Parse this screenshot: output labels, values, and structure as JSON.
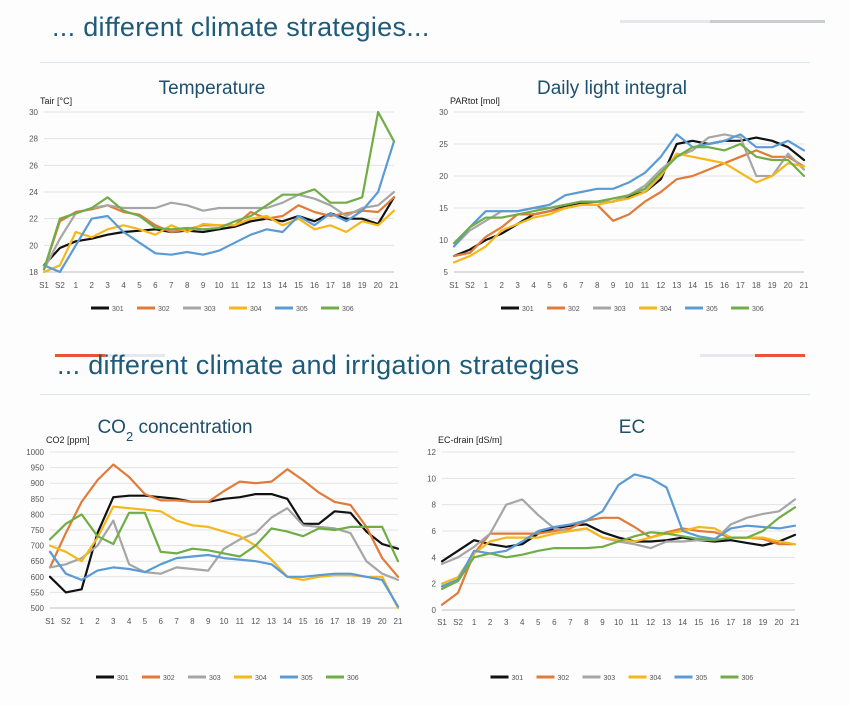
{
  "section1_heading": "... different climate strategies...",
  "section2_heading": "... different climate and irrigation strategies",
  "colors": {
    "301": "#111111",
    "302": "#e07b39",
    "303": "#a6a6a6",
    "304": "#f5b81c",
    "305": "#5b9bd5",
    "306": "#70ad47"
  },
  "chart_data": [
    {
      "type": "line",
      "title": "Temperature",
      "ylabel": "Tair [°C]",
      "categories": [
        "S1",
        "S2",
        "1",
        "2",
        "3",
        "4",
        "5",
        "6",
        "7",
        "8",
        "9",
        "10",
        "11",
        "12",
        "13",
        "14",
        "15",
        "16",
        "17",
        "18",
        "19",
        "20",
        "21"
      ],
      "ylim": [
        18,
        30
      ],
      "yticks": [
        18,
        20,
        22,
        24,
        26,
        28,
        30
      ],
      "grid": true,
      "legend": "bottom",
      "series": [
        {
          "name": "301",
          "values": [
            18.5,
            19.8,
            20.3,
            20.5,
            20.8,
            21.0,
            21.1,
            21.2,
            21.0,
            21.1,
            21.0,
            21.2,
            21.4,
            21.8,
            22.0,
            21.8,
            22.2,
            21.8,
            22.4,
            22.0,
            22.0,
            21.6,
            23.6
          ]
        },
        {
          "name": "302",
          "values": [
            18.2,
            21.8,
            22.5,
            22.7,
            23.0,
            22.5,
            22.3,
            21.5,
            21.0,
            21.2,
            21.5,
            21.5,
            21.5,
            22.5,
            22.0,
            22.2,
            23.0,
            22.5,
            22.2,
            22.4,
            22.6,
            22.5,
            23.6
          ]
        },
        {
          "name": "303",
          "values": [
            18.2,
            20.5,
            22.4,
            22.8,
            23.0,
            22.8,
            22.8,
            22.8,
            23.2,
            23.0,
            22.6,
            22.8,
            22.8,
            22.8,
            22.8,
            23.2,
            23.8,
            23.5,
            23.0,
            22.2,
            22.8,
            23.0,
            24.0
          ]
        },
        {
          "name": "304",
          "values": [
            18.0,
            18.5,
            21.0,
            20.6,
            21.2,
            21.5,
            21.2,
            20.8,
            21.5,
            21.0,
            21.6,
            21.5,
            21.5,
            22.0,
            22.2,
            21.5,
            22.0,
            21.2,
            21.5,
            21.0,
            21.8,
            21.5,
            22.6
          ]
        },
        {
          "name": "305",
          "values": [
            18.5,
            18.0,
            20.0,
            22.0,
            22.2,
            21.0,
            20.2,
            19.4,
            19.3,
            19.5,
            19.3,
            19.6,
            20.2,
            20.8,
            21.2,
            21.0,
            22.2,
            21.5,
            22.4,
            21.8,
            22.6,
            24.0,
            27.8
          ]
        },
        {
          "name": "306",
          "values": [
            18.2,
            22.0,
            22.4,
            22.8,
            23.6,
            22.6,
            22.2,
            21.3,
            21.2,
            21.3,
            21.2,
            21.3,
            21.8,
            22.2,
            23.0,
            23.8,
            23.8,
            24.2,
            23.2,
            23.2,
            23.6,
            30.0,
            27.8
          ]
        }
      ]
    },
    {
      "type": "line",
      "title": "Daily light integral",
      "ylabel": "PARtot [mol]",
      "categories": [
        "S1",
        "S2",
        "1",
        "2",
        "3",
        "4",
        "5",
        "6",
        "7",
        "8",
        "9",
        "10",
        "11",
        "12",
        "13",
        "14",
        "15",
        "16",
        "17",
        "18",
        "19",
        "20",
        "21"
      ],
      "ylim": [
        5,
        30
      ],
      "yticks": [
        5,
        10,
        15,
        20,
        25,
        30
      ],
      "grid": true,
      "legend": "bottom",
      "series": [
        {
          "name": "301",
          "values": [
            7.5,
            8.5,
            10.0,
            11.0,
            12.5,
            14.0,
            14.5,
            15.2,
            15.8,
            16.0,
            16.0,
            16.8,
            17.5,
            19.5,
            25.0,
            25.5,
            25.0,
            25.5,
            25.5,
            26.0,
            25.5,
            24.5,
            22.5
          ]
        },
        {
          "name": "302",
          "values": [
            7.5,
            8.0,
            10.5,
            12.0,
            14.0,
            14.0,
            14.5,
            15.0,
            15.5,
            15.5,
            13.0,
            14.0,
            16.0,
            17.5,
            19.5,
            20.0,
            21.0,
            22.0,
            23.0,
            24.0,
            23.0,
            23.0,
            21.5
          ]
        },
        {
          "name": "303",
          "values": [
            9.0,
            11.5,
            13.0,
            14.5,
            14.5,
            15.0,
            15.0,
            15.5,
            16.0,
            16.0,
            16.0,
            17.0,
            18.5,
            21.0,
            23.0,
            24.0,
            26.0,
            26.5,
            26.0,
            20.0,
            20.0,
            23.5,
            21.0
          ]
        },
        {
          "name": "304",
          "values": [
            6.5,
            7.5,
            9.0,
            11.5,
            12.5,
            13.5,
            14.0,
            15.0,
            15.5,
            15.5,
            16.0,
            16.5,
            17.5,
            20.0,
            23.5,
            23.0,
            22.5,
            22.0,
            20.5,
            19.0,
            20.0,
            22.0,
            21.5
          ]
        },
        {
          "name": "305",
          "values": [
            9.0,
            12.0,
            14.5,
            14.5,
            14.5,
            15.0,
            15.5,
            17.0,
            17.5,
            18.0,
            18.0,
            19.0,
            20.5,
            23.0,
            26.5,
            24.5,
            25.0,
            25.5,
            26.5,
            24.5,
            24.5,
            25.5,
            24.0
          ]
        },
        {
          "name": "306",
          "values": [
            9.5,
            12.0,
            13.5,
            13.5,
            14.0,
            14.5,
            15.0,
            15.5,
            16.0,
            16.0,
            16.5,
            17.0,
            18.0,
            20.5,
            23.0,
            24.5,
            24.5,
            24.0,
            25.0,
            23.0,
            22.5,
            22.5,
            20.0
          ]
        }
      ]
    },
    {
      "type": "line",
      "title": "CO2 concentration",
      "ylabel": "CO2 [ppm]",
      "categories": [
        "S1",
        "S2",
        "1",
        "2",
        "3",
        "4",
        "5",
        "6",
        "7",
        "8",
        "9",
        "10",
        "11",
        "12",
        "13",
        "14",
        "15",
        "16",
        "17",
        "18",
        "19",
        "20",
        "21"
      ],
      "ylim": [
        500,
        1000
      ],
      "yticks": [
        500,
        550,
        600,
        650,
        700,
        750,
        800,
        850,
        900,
        950,
        1000
      ],
      "grid": true,
      "legend": "bottom",
      "series": [
        {
          "name": "301",
          "values": [
            600,
            550,
            560,
            740,
            855,
            860,
            860,
            855,
            850,
            840,
            840,
            850,
            855,
            865,
            865,
            850,
            770,
            770,
            810,
            805,
            745,
            705,
            690
          ]
        },
        {
          "name": "302",
          "values": [
            630,
            740,
            840,
            910,
            960,
            920,
            865,
            845,
            845,
            840,
            840,
            875,
            905,
            900,
            905,
            945,
            910,
            870,
            840,
            830,
            760,
            660,
            600
          ]
        },
        {
          "name": "303",
          "values": [
            630,
            640,
            660,
            700,
            780,
            640,
            615,
            610,
            630,
            625,
            620,
            690,
            720,
            740,
            790,
            820,
            765,
            760,
            755,
            740,
            650,
            610,
            590
          ]
        },
        {
          "name": "304",
          "values": [
            700,
            680,
            650,
            725,
            825,
            820,
            815,
            810,
            780,
            765,
            760,
            745,
            730,
            700,
            655,
            600,
            590,
            600,
            605,
            605,
            600,
            600,
            500
          ]
        },
        {
          "name": "305",
          "values": [
            680,
            610,
            590,
            620,
            630,
            625,
            615,
            640,
            660,
            665,
            670,
            660,
            655,
            650,
            640,
            600,
            600,
            605,
            610,
            610,
            600,
            590,
            505
          ]
        },
        {
          "name": "306",
          "values": [
            720,
            770,
            800,
            730,
            705,
            805,
            805,
            680,
            675,
            690,
            685,
            675,
            665,
            700,
            755,
            745,
            730,
            755,
            750,
            760,
            760,
            760,
            650
          ]
        }
      ]
    },
    {
      "type": "line",
      "title": "EC",
      "ylabel": "EC-drain [dS/m]",
      "categories": [
        "S1",
        "S2",
        "1",
        "2",
        "3",
        "4",
        "5",
        "6",
        "7",
        "8",
        "9",
        "10",
        "11",
        "12",
        "13",
        "14",
        "15",
        "16",
        "17",
        "18",
        "19",
        "20",
        "21"
      ],
      "ylim": [
        0,
        12
      ],
      "yticks": [
        0,
        2,
        4,
        6,
        8,
        10,
        12
      ],
      "grid": true,
      "legend": "bottom",
      "series": [
        {
          "name": "301",
          "values": [
            3.7,
            4.5,
            5.3,
            5.0,
            4.8,
            5.0,
            5.8,
            6.2,
            6.4,
            6.5,
            5.9,
            5.5,
            5.2,
            5.2,
            5.3,
            5.5,
            5.3,
            5.2,
            5.3,
            5.1,
            4.9,
            5.2,
            5.7
          ]
        },
        {
          "name": "302",
          "values": [
            0.4,
            1.3,
            4.3,
            5.8,
            5.8,
            5.8,
            5.8,
            6.0,
            6.2,
            6.8,
            7.0,
            7.0,
            6.3,
            5.5,
            5.9,
            6.2,
            6.0,
            5.9,
            5.5,
            5.5,
            5.4,
            5.0,
            5.0
          ]
        },
        {
          "name": "303",
          "values": [
            3.5,
            4.0,
            4.8,
            5.8,
            8.0,
            8.4,
            7.2,
            6.2,
            6.0,
            6.2,
            5.5,
            5.2,
            5.0,
            4.7,
            5.2,
            5.2,
            5.3,
            5.3,
            6.5,
            7.0,
            7.3,
            7.5,
            8.4
          ]
        },
        {
          "name": "304",
          "values": [
            2.0,
            2.5,
            4.3,
            5.2,
            5.5,
            5.5,
            5.5,
            5.8,
            6.0,
            6.2,
            5.5,
            5.3,
            5.2,
            5.5,
            5.8,
            6.0,
            6.3,
            6.2,
            5.5,
            5.5,
            5.5,
            5.2,
            5.0
          ]
        },
        {
          "name": "305",
          "values": [
            1.8,
            2.3,
            4.5,
            4.3,
            4.5,
            5.2,
            6.0,
            6.3,
            6.5,
            6.8,
            7.5,
            9.5,
            10.3,
            10.0,
            9.3,
            6.0,
            5.6,
            5.4,
            6.2,
            6.4,
            6.3,
            6.2,
            6.4
          ]
        },
        {
          "name": "306",
          "values": [
            1.6,
            2.2,
            4.0,
            4.3,
            4.0,
            4.2,
            4.5,
            4.7,
            4.7,
            4.7,
            4.8,
            5.2,
            5.6,
            5.9,
            5.8,
            5.6,
            5.4,
            5.3,
            5.5,
            5.5,
            6.0,
            7.0,
            7.8
          ]
        }
      ]
    }
  ]
}
